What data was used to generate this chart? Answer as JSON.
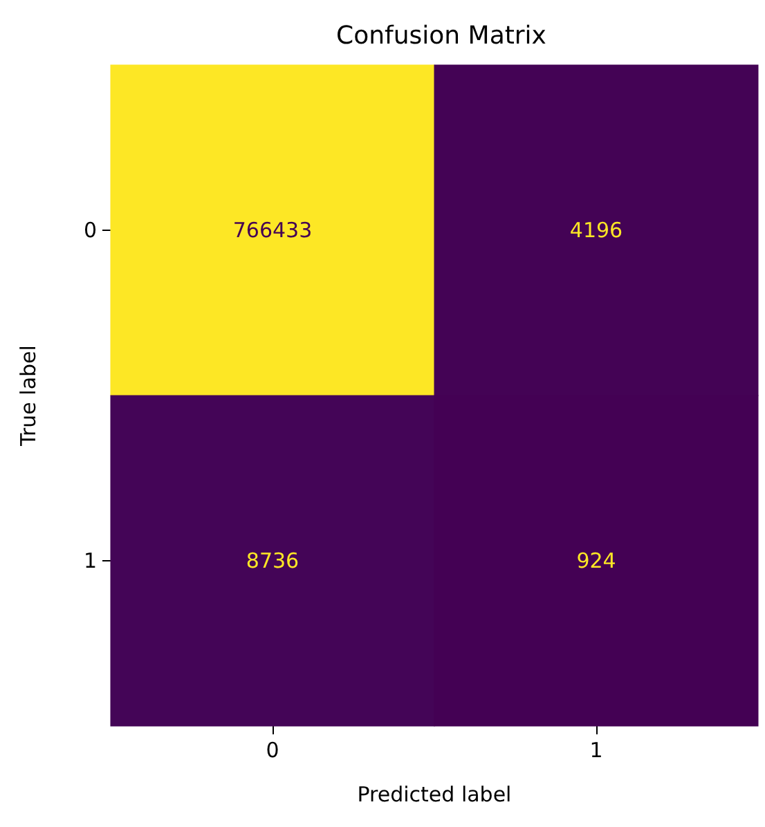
{
  "chart_data": {
    "type": "heatmap",
    "title": "Confusion Matrix",
    "xlabel": "Predicted label",
    "ylabel": "True label",
    "categories": [
      "0",
      "1"
    ],
    "y_categories": [
      "0",
      "1"
    ],
    "cells": [
      [
        766433,
        4196
      ],
      [
        8736,
        924
      ]
    ],
    "data_labels": true
  }
}
